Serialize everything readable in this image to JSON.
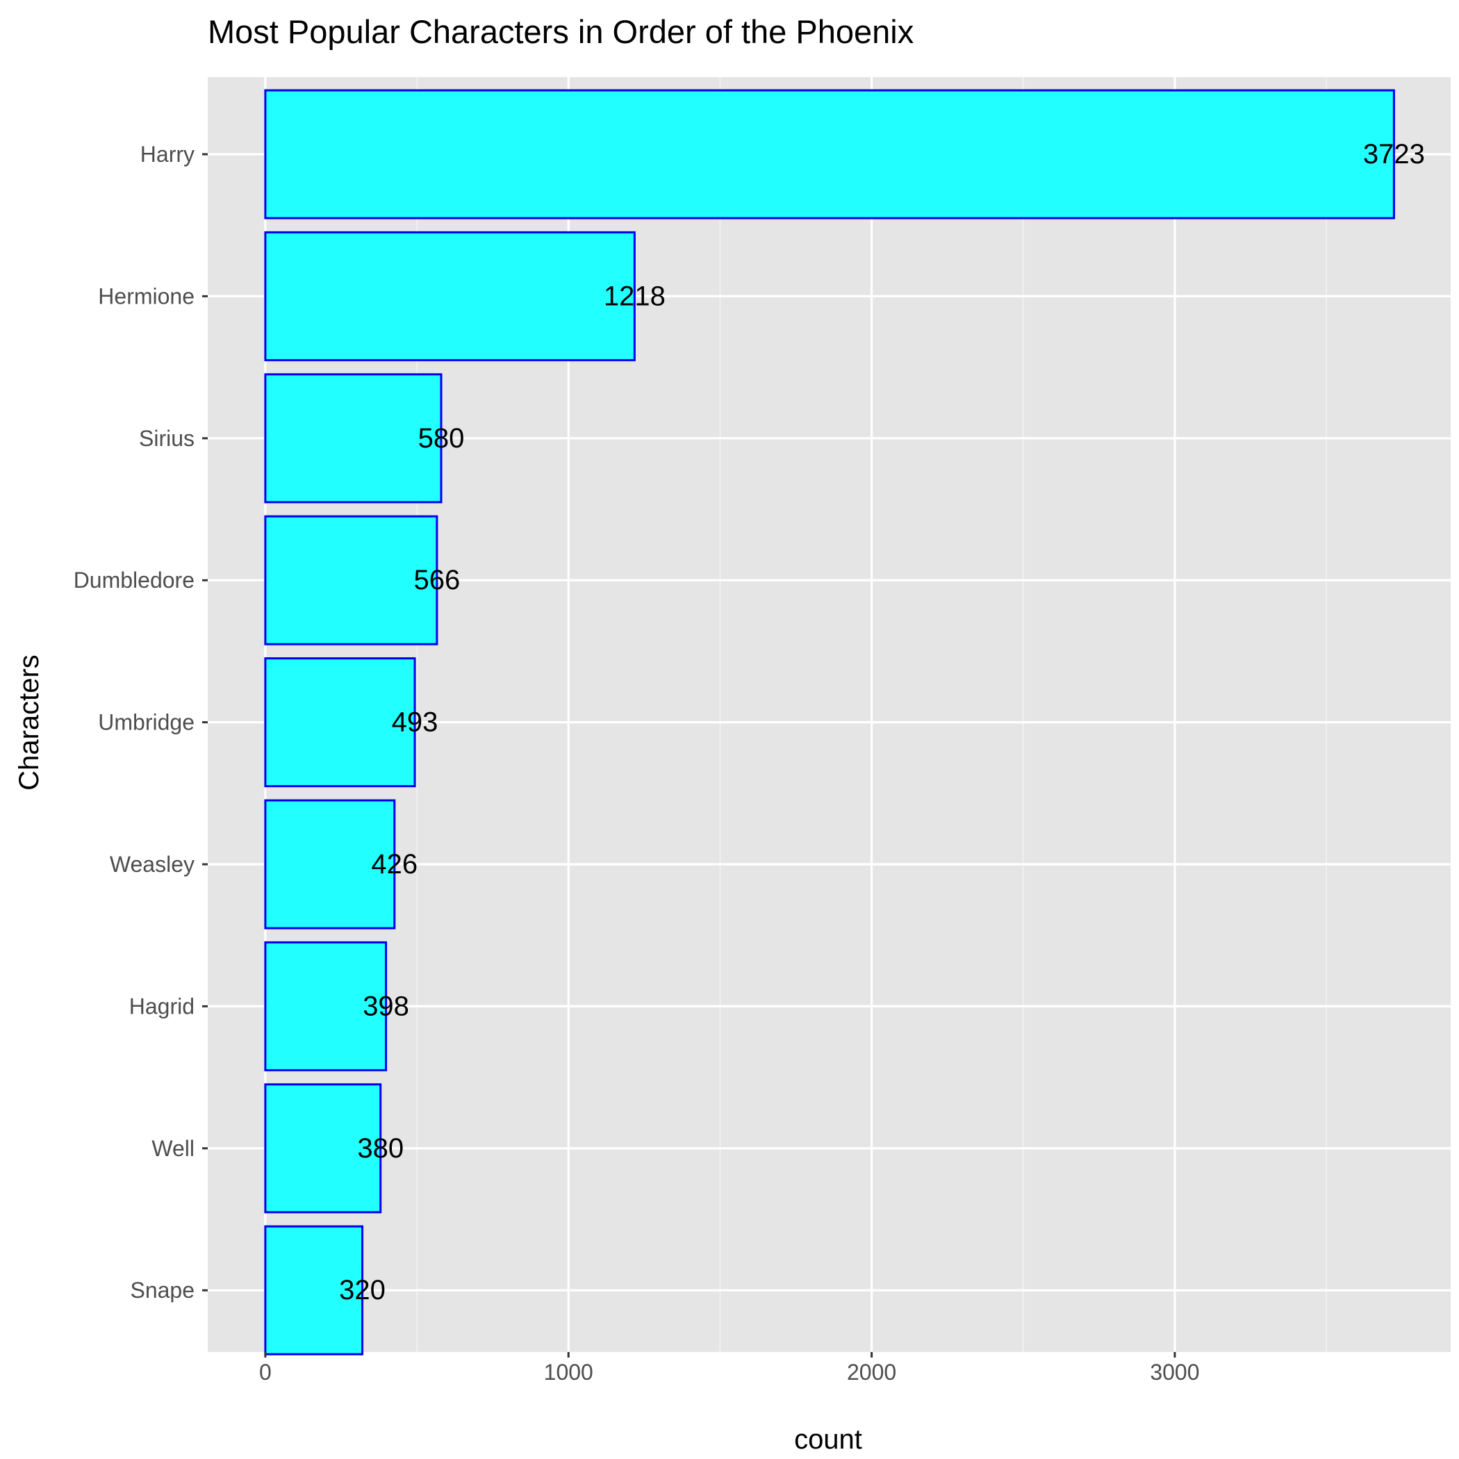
{
  "chart_data": {
    "type": "bar",
    "orientation": "horizontal",
    "title": "Most Popular Characters in Order of the Phoenix",
    "xlabel": "count",
    "ylabel": "Characters",
    "categories": [
      "Harry",
      "Hermione",
      "Sirius",
      "Dumbledore",
      "Umbridge",
      "Weasley",
      "Hagrid",
      "Well",
      "Snape"
    ],
    "values": [
      3723,
      1218,
      580,
      566,
      493,
      426,
      398,
      380,
      320
    ],
    "data_labels": [
      "3723",
      "1218",
      "580",
      "566",
      "493",
      "426",
      "398",
      "380",
      "320"
    ],
    "x_ticks": [
      0,
      1000,
      2000,
      3000
    ],
    "x_tick_labels": [
      "0",
      "1000",
      "2000",
      "3000"
    ],
    "xlim": [
      -190,
      3910
    ],
    "grid": true,
    "legend": "none",
    "colors": {
      "bar_fill": "#22ffff",
      "bar_stroke": "#0000ee",
      "panel_background": "#e5e5e5",
      "grid_major": "#ffffff",
      "grid_minor": "#f2f2f2",
      "tick_mark": "#333333"
    }
  }
}
